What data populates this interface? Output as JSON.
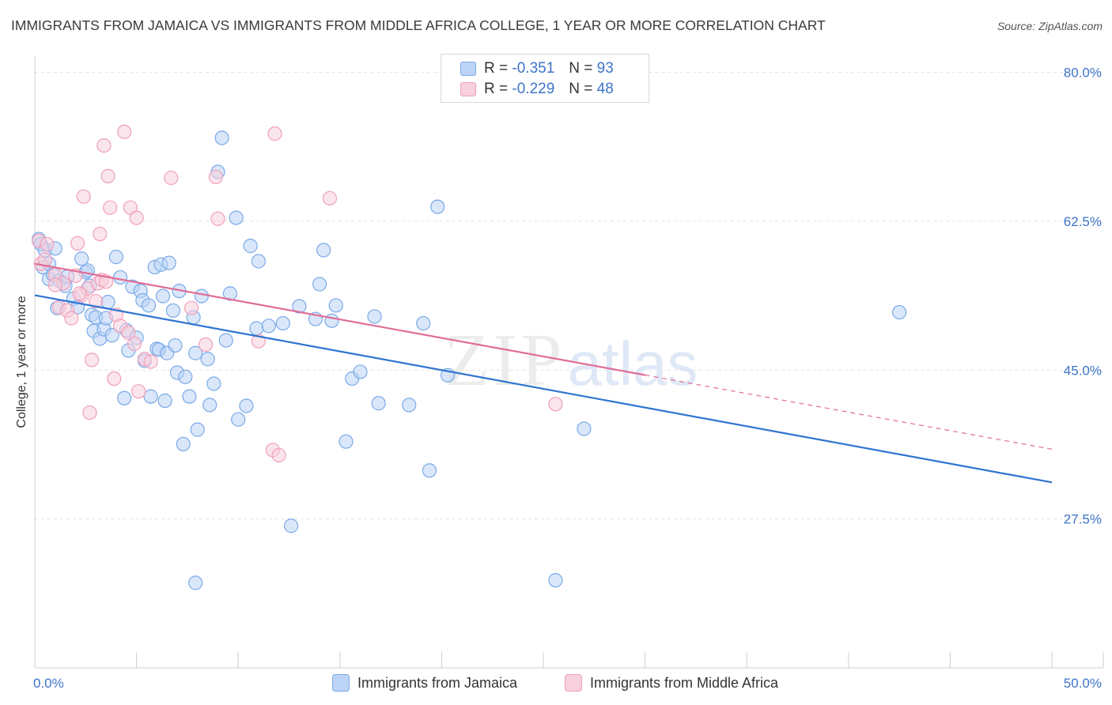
{
  "header": {
    "title": "IMMIGRANTS FROM JAMAICA VS IMMIGRANTS FROM MIDDLE AFRICA COLLEGE, 1 YEAR OR MORE CORRELATION CHART",
    "source": "Source: ZipAtlas.com"
  },
  "watermark": {
    "zip": "ZIP",
    "atlas": "atlas"
  },
  "stats_legend": {
    "rows": [
      {
        "r_label": "R =",
        "r_value": "-0.351",
        "n_label": "N =",
        "n_value": "93"
      },
      {
        "r_label": "R =",
        "r_value": "-0.229",
        "n_label": "N =",
        "n_value": "48"
      }
    ]
  },
  "chart_data": {
    "type": "scatter",
    "ylabel": "College, 1 year or more",
    "xlim": [
      0,
      50
    ],
    "ylim": [
      10,
      82
    ],
    "x_tick_labels": [
      {
        "value": 0,
        "label": "0.0%"
      },
      {
        "value": 50,
        "label": "50.0%"
      }
    ],
    "y_ticks": [
      {
        "value": 80,
        "label": "80.0%"
      },
      {
        "value": 62.5,
        "label": "62.5%"
      },
      {
        "value": 45,
        "label": "45.0%"
      },
      {
        "value": 27.5,
        "label": "27.5%"
      }
    ],
    "grid": true,
    "legend_position": "bottom",
    "series": [
      {
        "name": "Immigrants from Jamaica",
        "color": "#7aaae8",
        "fill": "#bcd4f6",
        "line_color": "#2f74d0",
        "trend": {
          "x0": 0,
          "y0": 53.8,
          "x1": 50,
          "y1": 31.8,
          "dash_from": null
        },
        "points": [
          [
            0.2,
            60.4
          ],
          [
            0.3,
            59.8
          ],
          [
            0.4,
            57.1
          ],
          [
            0.5,
            59.1
          ],
          [
            0.7,
            57.5
          ],
          [
            0.7,
            55.7
          ],
          [
            0.9,
            56.2
          ],
          [
            1.0,
            59.3
          ],
          [
            1.1,
            52.3
          ],
          [
            1.2,
            55.5
          ],
          [
            1.5,
            54.9
          ],
          [
            1.6,
            56.0
          ],
          [
            1.9,
            53.4
          ],
          [
            2.1,
            52.4
          ],
          [
            2.3,
            58.1
          ],
          [
            2.5,
            56.5
          ],
          [
            2.6,
            56.7
          ],
          [
            2.7,
            54.9
          ],
          [
            2.8,
            51.5
          ],
          [
            2.9,
            49.6
          ],
          [
            3.0,
            51.2
          ],
          [
            3.2,
            48.7
          ],
          [
            3.4,
            49.8
          ],
          [
            3.5,
            51.1
          ],
          [
            3.6,
            53.0
          ],
          [
            3.8,
            49.1
          ],
          [
            4.0,
            58.3
          ],
          [
            4.2,
            55.9
          ],
          [
            4.4,
            41.7
          ],
          [
            4.5,
            49.7
          ],
          [
            4.6,
            47.3
          ],
          [
            4.8,
            54.8
          ],
          [
            5.0,
            48.8
          ],
          [
            5.2,
            54.3
          ],
          [
            5.3,
            53.2
          ],
          [
            5.4,
            46.1
          ],
          [
            5.6,
            52.6
          ],
          [
            5.7,
            41.9
          ],
          [
            5.9,
            57.1
          ],
          [
            6.0,
            47.5
          ],
          [
            6.1,
            47.4
          ],
          [
            6.2,
            57.4
          ],
          [
            6.3,
            53.7
          ],
          [
            6.4,
            41.4
          ],
          [
            6.5,
            47.0
          ],
          [
            6.6,
            57.6
          ],
          [
            6.8,
            52.0
          ],
          [
            6.9,
            47.9
          ],
          [
            7.0,
            44.7
          ],
          [
            7.1,
            54.3
          ],
          [
            7.3,
            36.3
          ],
          [
            7.4,
            44.2
          ],
          [
            7.6,
            41.9
          ],
          [
            7.8,
            51.2
          ],
          [
            7.9,
            47.0
          ],
          [
            8.0,
            38.0
          ],
          [
            8.2,
            53.7
          ],
          [
            8.5,
            46.3
          ],
          [
            8.6,
            40.9
          ],
          [
            8.8,
            43.4
          ],
          [
            9.0,
            68.3
          ],
          [
            9.2,
            72.3
          ],
          [
            9.4,
            48.5
          ],
          [
            9.6,
            54.0
          ],
          [
            9.9,
            62.9
          ],
          [
            10.0,
            39.2
          ],
          [
            10.4,
            40.8
          ],
          [
            10.6,
            59.6
          ],
          [
            10.9,
            49.9
          ],
          [
            11.0,
            57.8
          ],
          [
            11.5,
            50.2
          ],
          [
            12.2,
            50.5
          ],
          [
            12.6,
            26.7
          ],
          [
            13.0,
            52.5
          ],
          [
            13.8,
            51.0
          ],
          [
            14.0,
            55.1
          ],
          [
            14.2,
            59.1
          ],
          [
            14.6,
            50.8
          ],
          [
            14.8,
            52.6
          ],
          [
            15.3,
            36.6
          ],
          [
            15.6,
            44.0
          ],
          [
            16.0,
            44.8
          ],
          [
            16.7,
            51.3
          ],
          [
            16.9,
            41.1
          ],
          [
            18.4,
            40.9
          ],
          [
            19.1,
            50.5
          ],
          [
            19.4,
            33.2
          ],
          [
            19.8,
            64.2
          ],
          [
            20.3,
            44.4
          ],
          [
            25.6,
            20.3
          ],
          [
            27.0,
            38.1
          ],
          [
            42.5,
            51.8
          ],
          [
            7.9,
            20.0
          ]
        ]
      },
      {
        "name": "Immigrants from Middle Africa",
        "color": "#f0a0ba",
        "fill": "#f8cfdc",
        "line_color": "#e06d96",
        "trend": {
          "x0": 0,
          "y0": 57.5,
          "x1": 50,
          "y1": 35.7,
          "dash_from": 30
        },
        "points": [
          [
            0.2,
            60.2
          ],
          [
            0.3,
            57.5
          ],
          [
            0.5,
            58.0
          ],
          [
            0.6,
            59.8
          ],
          [
            1.0,
            56.2
          ],
          [
            1.2,
            52.4
          ],
          [
            1.4,
            55.2
          ],
          [
            1.6,
            52.0
          ],
          [
            1.8,
            51.1
          ],
          [
            2.0,
            56.1
          ],
          [
            2.1,
            59.9
          ],
          [
            2.3,
            53.8
          ],
          [
            2.4,
            65.4
          ],
          [
            2.6,
            54.6
          ],
          [
            2.7,
            40.0
          ],
          [
            2.8,
            46.2
          ],
          [
            3.0,
            53.1
          ],
          [
            3.1,
            55.2
          ],
          [
            3.2,
            61.0
          ],
          [
            3.3,
            55.6
          ],
          [
            3.4,
            71.4
          ],
          [
            3.5,
            55.4
          ],
          [
            3.6,
            67.8
          ],
          [
            3.7,
            64.1
          ],
          [
            3.9,
            44.0
          ],
          [
            4.0,
            51.5
          ],
          [
            4.2,
            50.2
          ],
          [
            4.4,
            73.0
          ],
          [
            4.6,
            49.4
          ],
          [
            4.7,
            64.1
          ],
          [
            4.9,
            48.1
          ],
          [
            5.0,
            62.9
          ],
          [
            5.1,
            42.5
          ],
          [
            5.4,
            46.3
          ],
          [
            5.7,
            46.0
          ],
          [
            6.7,
            67.6
          ],
          [
            7.7,
            52.3
          ],
          [
            8.4,
            48.0
          ],
          [
            8.9,
            67.7
          ],
          [
            9.0,
            62.8
          ],
          [
            11.0,
            48.4
          ],
          [
            11.7,
            35.6
          ],
          [
            11.8,
            72.8
          ],
          [
            12.0,
            35.0
          ],
          [
            14.5,
            65.2
          ],
          [
            25.6,
            41.0
          ],
          [
            1.0,
            55.0
          ],
          [
            2.2,
            54.0
          ]
        ]
      }
    ]
  }
}
